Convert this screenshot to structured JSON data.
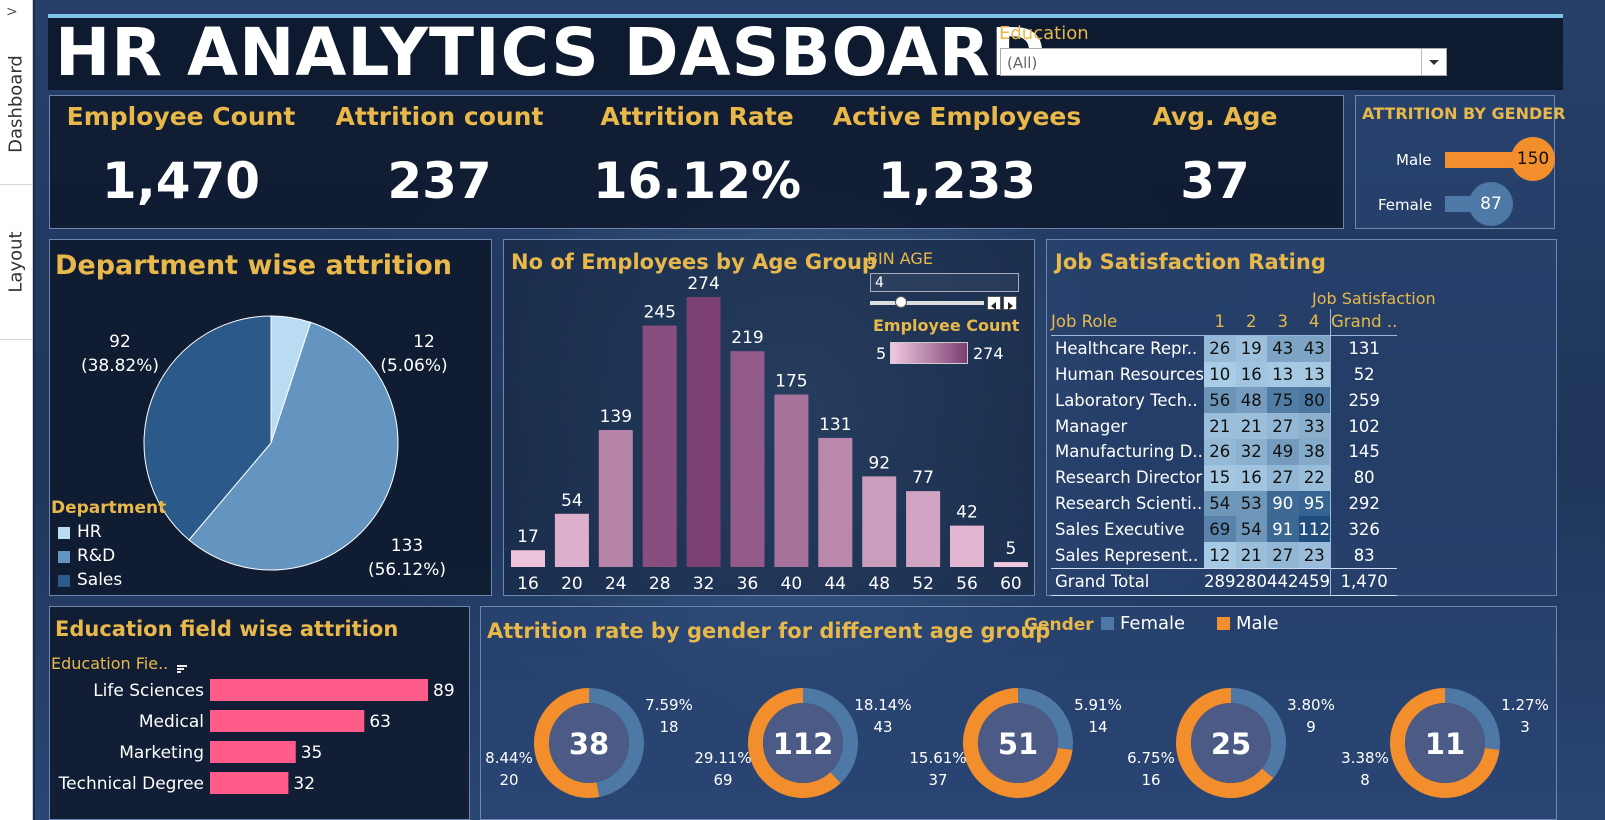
{
  "side_tabs": [
    "Dashboard",
    "Layout"
  ],
  "rail_arrow": ">",
  "title": "HR ANALYTICS DASBOARD",
  "filter": {
    "label": "Education",
    "value": "(All)"
  },
  "kpis": [
    {
      "label": "Employee Count",
      "value": "1,470"
    },
    {
      "label": "Attrition count",
      "value": "237"
    },
    {
      "label": "Attrition Rate",
      "value": "16.12%"
    },
    {
      "label": "Active Employees",
      "value": "1,233"
    },
    {
      "label": "Avg. Age",
      "value": "37"
    }
  ],
  "gender_panel": {
    "title": "ATTRITION BY GENDER",
    "rows": [
      {
        "label": "Male",
        "value": 150,
        "display": "150"
      },
      {
        "label": "Female",
        "value": 87,
        "display": "87"
      }
    ],
    "color": "#f28e2b",
    "color_female": "#4e79a7"
  },
  "department_panel": {
    "title": "Department wise attrition",
    "legend_title": "Department",
    "legend": [
      {
        "label": "HR",
        "color": "#b9dcf2"
      },
      {
        "label": "R&D",
        "color": "#6495c0"
      },
      {
        "label": "Sales",
        "color": "#2b5a8a"
      }
    ],
    "labels": [
      {
        "value": "12",
        "pct": "(5.06%)"
      },
      {
        "value": "133",
        "pct": "(56.12%)"
      },
      {
        "value": "92",
        "pct": "(38.82%)"
      }
    ]
  },
  "age_panel": {
    "title": "No of Employees by Age Group",
    "bin_label": "BIN AGE",
    "bin_value": "4",
    "legend_title": "Employee Count",
    "legend_min": "5",
    "legend_max": "274",
    "color_low": "#f2c9e0",
    "color_high": "#7b3f73"
  },
  "job_panel": {
    "title": "Job Satisfaction Rating",
    "col_header": "Job Satisfaction",
    "row_header": "Job Role",
    "columns": [
      "1",
      "2",
      "3",
      "4",
      "Grand .."
    ],
    "rows": [
      {
        "role": "Healthcare Repr..",
        "vals": [
          "26",
          "19",
          "43",
          "43"
        ],
        "total": "131"
      },
      {
        "role": "Human Resources",
        "vals": [
          "10",
          "16",
          "13",
          "13"
        ],
        "total": "52"
      },
      {
        "role": "Laboratory Tech..",
        "vals": [
          "56",
          "48",
          "75",
          "80"
        ],
        "total": "259"
      },
      {
        "role": "Manager",
        "vals": [
          "21",
          "21",
          "27",
          "33"
        ],
        "total": "102"
      },
      {
        "role": "Manufacturing D..",
        "vals": [
          "26",
          "32",
          "49",
          "38"
        ],
        "total": "145"
      },
      {
        "role": "Research Director",
        "vals": [
          "15",
          "16",
          "27",
          "22"
        ],
        "total": "80"
      },
      {
        "role": "Research Scienti..",
        "vals": [
          "54",
          "53",
          "90",
          "95"
        ],
        "total": "292"
      },
      {
        "role": "Sales Executive",
        "vals": [
          "69",
          "54",
          "91",
          "112"
        ],
        "total": "326"
      },
      {
        "role": "Sales Represent..",
        "vals": [
          "12",
          "21",
          "27",
          "23"
        ],
        "total": "83"
      }
    ],
    "grand_total_label": "Grand Total",
    "grand_totals": [
      "289",
      "280",
      "442",
      "459",
      "1,470"
    ]
  },
  "edu_panel": {
    "title": "Education field wise attrition",
    "axis_label": "Education Fie..",
    "bar_color": "#ff5c8a"
  },
  "donut_panel": {
    "title": "Attrition rate by gender for different age group",
    "legend_title": "Gender",
    "legend": [
      {
        "label": "Female",
        "color": "#4e79a7"
      },
      {
        "label": "Male",
        "color": "#f28e2b"
      }
    ],
    "donuts": [
      {
        "center": "38",
        "female_pct": "7.59%",
        "female_count": "18",
        "male_pct": "8.44%",
        "male_count": "20",
        "female_share": 0.47
      },
      {
        "center": "112",
        "female_pct": "18.14%",
        "female_count": "43",
        "male_pct": "29.11%",
        "male_count": "69",
        "female_share": 0.38
      },
      {
        "center": "51",
        "female_pct": "5.91%",
        "female_count": "14",
        "male_pct": "15.61%",
        "male_count": "37",
        "female_share": 0.27
      },
      {
        "center": "25",
        "female_pct": "3.80%",
        "female_count": "9",
        "male_pct": "6.75%",
        "male_count": "16",
        "female_share": 0.36
      },
      {
        "center": "11",
        "female_pct": "1.27%",
        "female_count": "3",
        "male_pct": "3.38%",
        "male_count": "8",
        "female_share": 0.27
      }
    ]
  },
  "chart_data": [
    {
      "type": "pie",
      "title": "Department wise attrition",
      "categories": [
        "HR",
        "R&D",
        "Sales"
      ],
      "values": [
        12,
        133,
        92
      ],
      "percentages": [
        5.06,
        56.12,
        38.82
      ],
      "legend": "bottom-left"
    },
    {
      "type": "bar",
      "title": "No of Employees by Age Group",
      "categories": [
        "16",
        "20",
        "24",
        "28",
        "32",
        "36",
        "40",
        "44",
        "48",
        "52",
        "56",
        "60"
      ],
      "values": [
        17,
        54,
        139,
        245,
        274,
        219,
        175,
        131,
        92,
        77,
        42,
        5
      ],
      "data_labels": [
        "17",
        "54",
        "139",
        "245",
        "274",
        "219",
        "175",
        "131",
        "92",
        "77",
        "42",
        "5"
      ]
    },
    {
      "type": "bar",
      "orientation": "horizontal",
      "title": "Education field wise attrition",
      "categories": [
        "Life Sciences",
        "Medical",
        "Marketing",
        "Technical Degree"
      ],
      "values": [
        89,
        63,
        35,
        32
      ],
      "data_labels": [
        "89",
        "63",
        "35",
        "32"
      ]
    },
    {
      "type": "table",
      "title": "Job Satisfaction Rating",
      "note": "heatmap table, see job_panel"
    }
  ]
}
